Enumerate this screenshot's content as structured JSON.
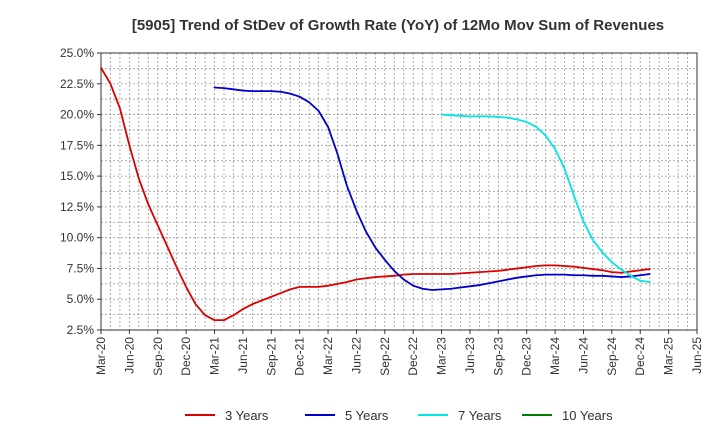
{
  "chart_data": {
    "type": "line",
    "title": "[5905]  Trend of StDev of Growth Rate (YoY) of 12Mo Mov Sum of Revenues",
    "xlabel": "",
    "ylabel": "",
    "ylim": [
      2.5,
      25.0
    ],
    "x_ticks": [
      "Mar-20",
      "Jun-20",
      "Sep-20",
      "Dec-20",
      "Mar-21",
      "Jun-21",
      "Sep-21",
      "Dec-21",
      "Mar-22",
      "Jun-22",
      "Sep-22",
      "Dec-22",
      "Mar-23",
      "Jun-23",
      "Sep-23",
      "Dec-23",
      "Mar-24",
      "Jun-24",
      "Sep-24",
      "Dec-24",
      "Mar-25",
      "Jun-25"
    ],
    "y_ticks": [
      "2.5%",
      "5.0%",
      "7.5%",
      "10.0%",
      "12.5%",
      "15.0%",
      "17.5%",
      "20.0%",
      "22.5%",
      "25.0%"
    ],
    "y_tick_values": [
      2.5,
      5.0,
      7.5,
      10.0,
      12.5,
      15.0,
      17.5,
      20.0,
      22.5,
      25.0
    ],
    "x_index_unit": "months since Mar-20",
    "series": [
      {
        "name": "3 Years",
        "color": "#dd0000",
        "points": [
          [
            0,
            23.8
          ],
          [
            1,
            22.5
          ],
          [
            2,
            20.5
          ],
          [
            3,
            17.5
          ],
          [
            4,
            14.8
          ],
          [
            5,
            12.7
          ],
          [
            6,
            11.0
          ],
          [
            7,
            9.3
          ],
          [
            8,
            7.6
          ],
          [
            9,
            6.0
          ],
          [
            10,
            4.6
          ],
          [
            11,
            3.7
          ],
          [
            12,
            3.3
          ],
          [
            13,
            3.3
          ],
          [
            14,
            3.7
          ],
          [
            15,
            4.2
          ],
          [
            16,
            4.6
          ],
          [
            17,
            4.9
          ],
          [
            18,
            5.2
          ],
          [
            19,
            5.5
          ],
          [
            20,
            5.8
          ],
          [
            21,
            6.0
          ],
          [
            22,
            6.0
          ],
          [
            23,
            6.0
          ],
          [
            24,
            6.1
          ],
          [
            25,
            6.25
          ],
          [
            26,
            6.4
          ],
          [
            27,
            6.6
          ],
          [
            28,
            6.7
          ],
          [
            29,
            6.8
          ],
          [
            30,
            6.85
          ],
          [
            31,
            6.9
          ],
          [
            32,
            7.0
          ],
          [
            33,
            7.05
          ],
          [
            34,
            7.05
          ],
          [
            35,
            7.05
          ],
          [
            36,
            7.05
          ],
          [
            37,
            7.05
          ],
          [
            38,
            7.1
          ],
          [
            39,
            7.15
          ],
          [
            40,
            7.2
          ],
          [
            41,
            7.25
          ],
          [
            42,
            7.3
          ],
          [
            43,
            7.4
          ],
          [
            44,
            7.5
          ],
          [
            45,
            7.6
          ],
          [
            46,
            7.7
          ],
          [
            47,
            7.75
          ],
          [
            48,
            7.75
          ],
          [
            49,
            7.7
          ],
          [
            50,
            7.65
          ],
          [
            51,
            7.55
          ],
          [
            52,
            7.45
          ],
          [
            53,
            7.35
          ],
          [
            54,
            7.2
          ],
          [
            55,
            7.15
          ],
          [
            56,
            7.25
          ],
          [
            57,
            7.35
          ],
          [
            58,
            7.45
          ]
        ]
      },
      {
        "name": "5 Years",
        "color": "#0000cc",
        "points": [
          [
            12,
            22.2
          ],
          [
            13,
            22.15
          ],
          [
            14,
            22.05
          ],
          [
            15,
            21.95
          ],
          [
            16,
            21.9
          ],
          [
            17,
            21.9
          ],
          [
            18,
            21.9
          ],
          [
            19,
            21.85
          ],
          [
            20,
            21.7
          ],
          [
            21,
            21.45
          ],
          [
            22,
            21.0
          ],
          [
            23,
            20.3
          ],
          [
            24,
            19.0
          ],
          [
            25,
            16.8
          ],
          [
            26,
            14.2
          ],
          [
            27,
            12.2
          ],
          [
            28,
            10.5
          ],
          [
            29,
            9.2
          ],
          [
            30,
            8.2
          ],
          [
            31,
            7.3
          ],
          [
            32,
            6.6
          ],
          [
            33,
            6.1
          ],
          [
            34,
            5.85
          ],
          [
            35,
            5.75
          ],
          [
            36,
            5.8
          ],
          [
            37,
            5.85
          ],
          [
            38,
            5.95
          ],
          [
            39,
            6.05
          ],
          [
            40,
            6.15
          ],
          [
            41,
            6.3
          ],
          [
            42,
            6.45
          ],
          [
            43,
            6.6
          ],
          [
            44,
            6.75
          ],
          [
            45,
            6.85
          ],
          [
            46,
            6.95
          ],
          [
            47,
            7.0
          ],
          [
            48,
            7.0
          ],
          [
            49,
            7.0
          ],
          [
            50,
            6.95
          ],
          [
            51,
            6.95
          ],
          [
            52,
            6.9
          ],
          [
            53,
            6.9
          ],
          [
            54,
            6.85
          ],
          [
            55,
            6.8
          ],
          [
            56,
            6.85
          ],
          [
            57,
            6.95
          ],
          [
            58,
            7.05
          ]
        ]
      },
      {
        "name": "7 Years",
        "color": "#00e5e5",
        "points": [
          [
            36,
            20.0
          ],
          [
            37,
            19.95
          ],
          [
            38,
            19.9
          ],
          [
            39,
            19.85
          ],
          [
            40,
            19.85
          ],
          [
            41,
            19.85
          ],
          [
            42,
            19.8
          ],
          [
            43,
            19.75
          ],
          [
            44,
            19.6
          ],
          [
            45,
            19.4
          ],
          [
            46,
            19.0
          ],
          [
            47,
            18.3
          ],
          [
            48,
            17.2
          ],
          [
            49,
            15.6
          ],
          [
            50,
            13.4
          ],
          [
            51,
            11.3
          ],
          [
            52,
            9.8
          ],
          [
            53,
            8.8
          ],
          [
            54,
            8.0
          ],
          [
            55,
            7.4
          ],
          [
            56,
            6.9
          ],
          [
            57,
            6.5
          ],
          [
            58,
            6.4
          ]
        ]
      },
      {
        "name": "10 Years",
        "color": "#008000",
        "points": []
      }
    ]
  }
}
